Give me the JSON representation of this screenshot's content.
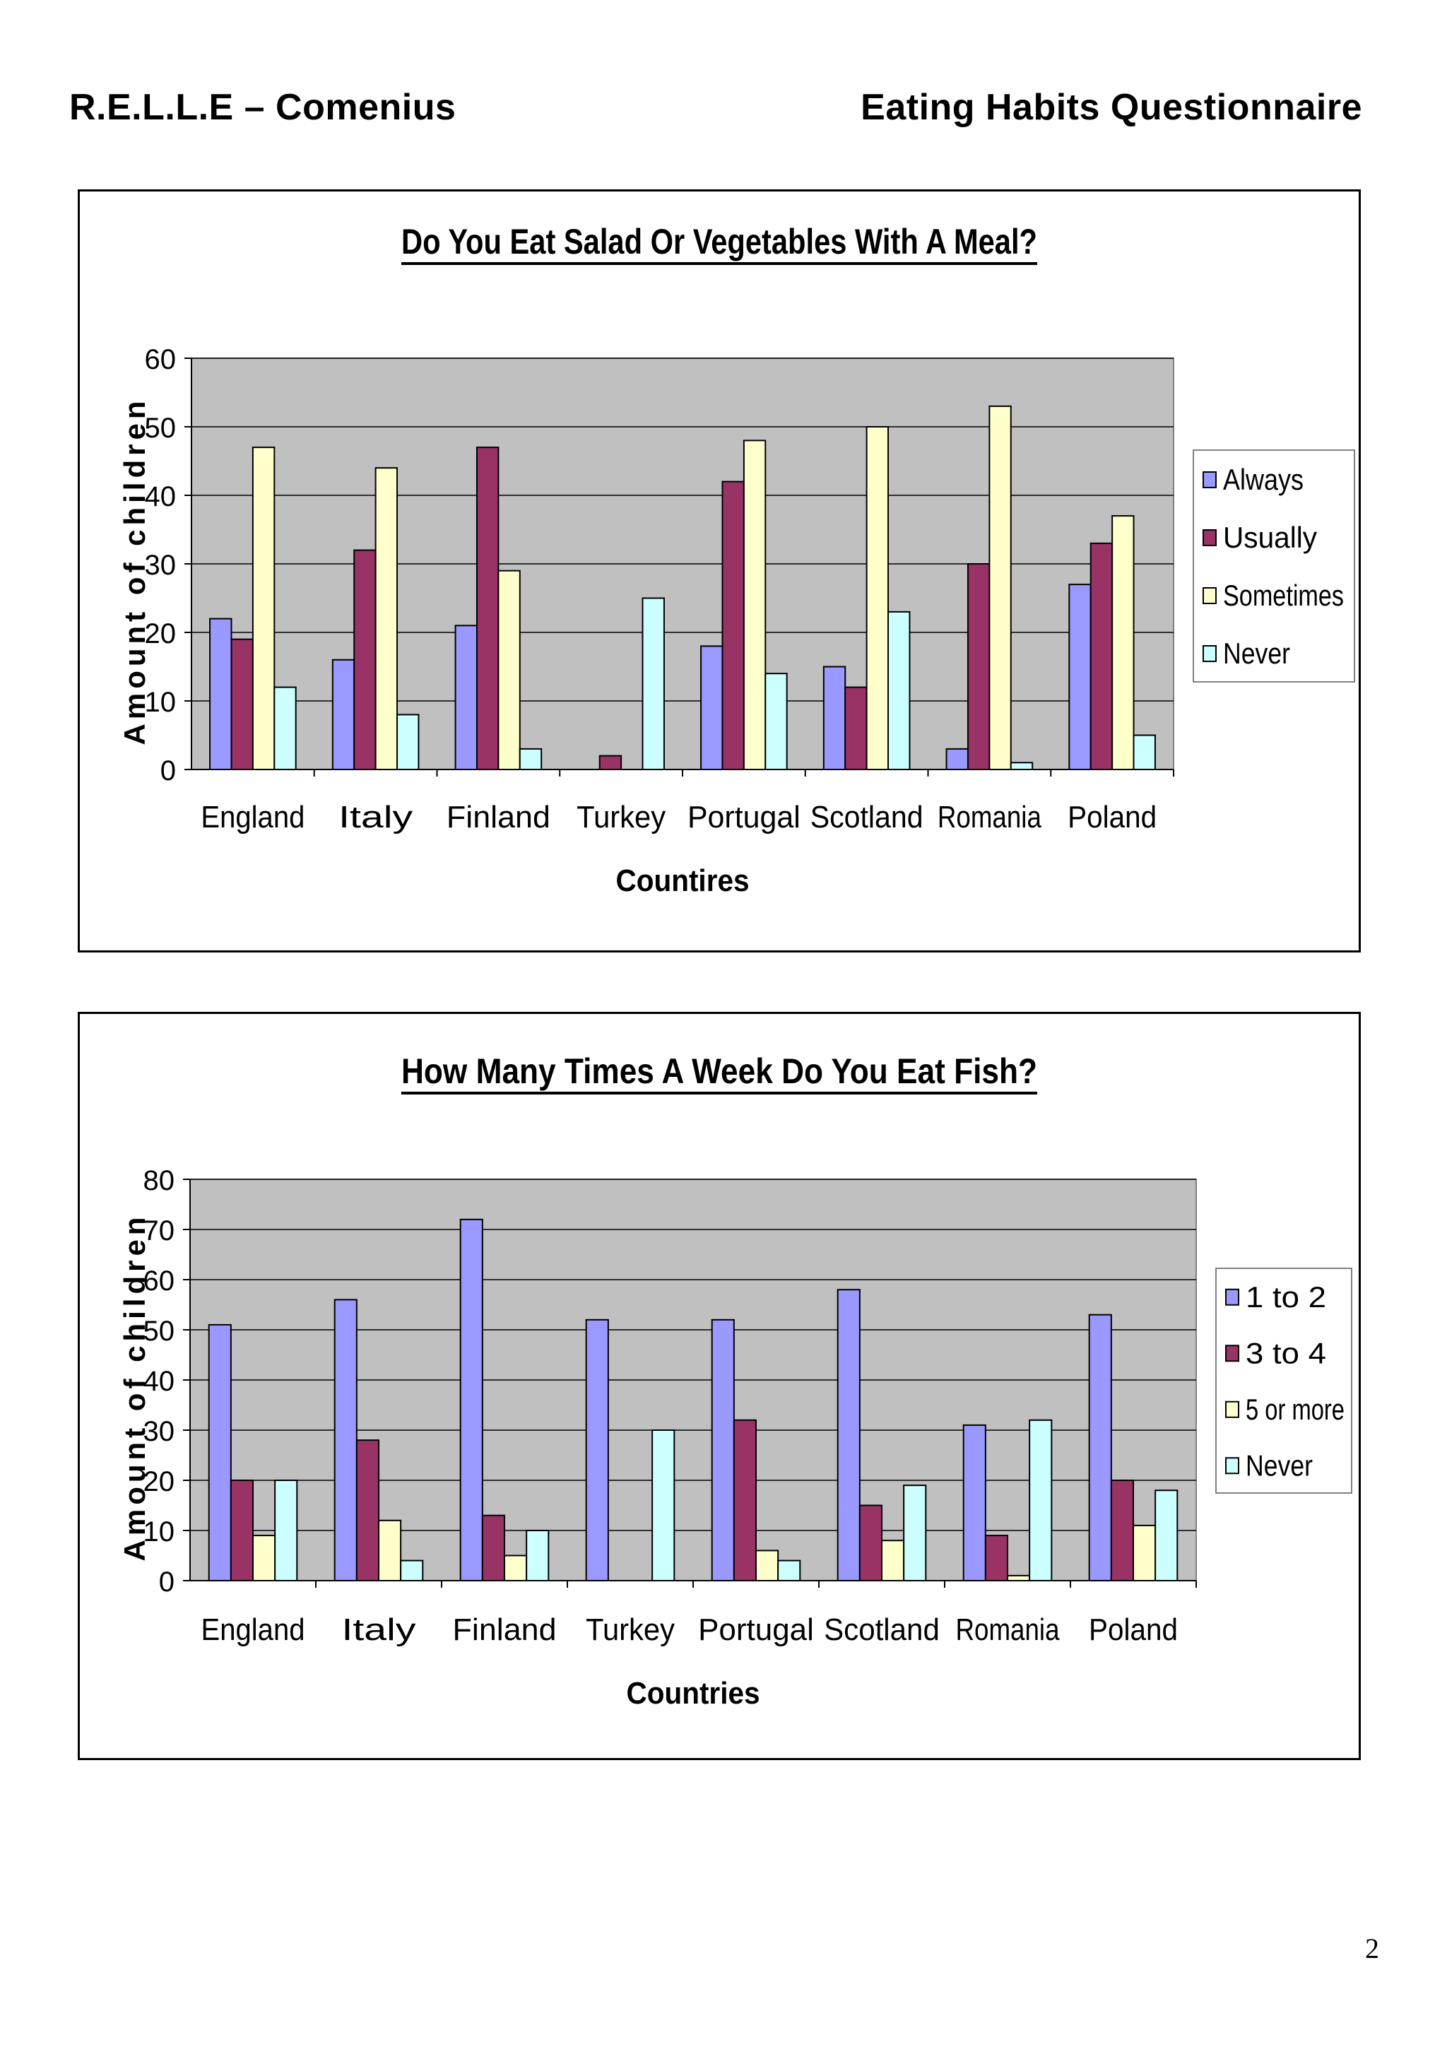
{
  "header": {
    "left": "R.E.L.L.E – Comenius",
    "right": "Eating Habits Questionnaire"
  },
  "page_number": "2",
  "colors": {
    "series1": "#9999FF",
    "series2": "#993366",
    "series3": "#FFFFCC",
    "series4": "#CCFFFF",
    "plot_bg": "#C0C0C0"
  },
  "chart_data": [
    {
      "type": "bar",
      "title": "Do You Eat Salad Or Vegetables With A Meal?",
      "xlabel": "Countires",
      "ylabel": "Amount of children",
      "ylim": [
        0,
        60
      ],
      "yticks": [
        0,
        10,
        20,
        30,
        40,
        50,
        60
      ],
      "grid": true,
      "legend_position": "right",
      "categories": [
        "England",
        "Italy",
        "Finland",
        "Turkey",
        "Portugal",
        "Scotland",
        "Romania",
        "Poland"
      ],
      "series": [
        {
          "name": "Always",
          "values": [
            22,
            16,
            21,
            0,
            18,
            15,
            3,
            27
          ]
        },
        {
          "name": "Usually",
          "values": [
            19,
            32,
            47,
            2,
            42,
            12,
            30,
            33
          ]
        },
        {
          "name": "Sometimes",
          "values": [
            47,
            44,
            29,
            0,
            48,
            50,
            53,
            37
          ]
        },
        {
          "name": "Never",
          "values": [
            12,
            8,
            3,
            25,
            14,
            23,
            1,
            5
          ]
        }
      ]
    },
    {
      "type": "bar",
      "title": "How Many Times A Week Do You Eat Fish?",
      "xlabel": "Countries",
      "ylabel": "Amount of children",
      "ylim": [
        0,
        80
      ],
      "yticks": [
        0,
        10,
        20,
        30,
        40,
        50,
        60,
        70,
        80
      ],
      "grid": true,
      "legend_position": "right",
      "categories": [
        "England",
        "Italy",
        "Finland",
        "Turkey",
        "Portugal",
        "Scotland",
        "Romania",
        "Poland"
      ],
      "series": [
        {
          "name": "1 to 2",
          "values": [
            51,
            56,
            72,
            52,
            52,
            58,
            31,
            53
          ]
        },
        {
          "name": "3 to 4",
          "values": [
            20,
            28,
            13,
            0,
            32,
            15,
            9,
            20
          ]
        },
        {
          "name": "5 or more",
          "values": [
            9,
            12,
            5,
            0,
            6,
            8,
            1,
            11
          ]
        },
        {
          "name": "Never",
          "values": [
            20,
            4,
            10,
            30,
            4,
            19,
            32,
            18
          ]
        }
      ]
    }
  ]
}
